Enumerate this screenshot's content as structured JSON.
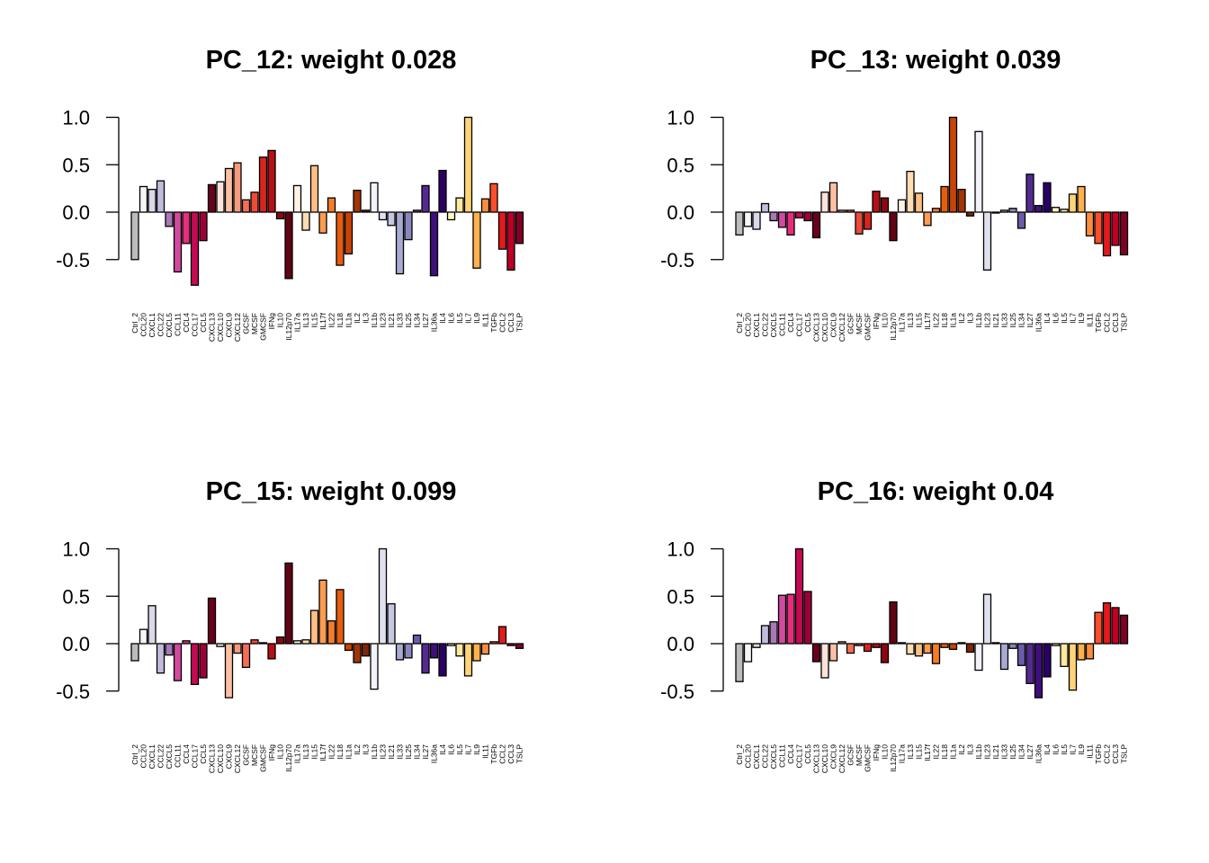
{
  "chart_data": [
    {
      "type": "bar",
      "title": "PC_12: weight 0.028",
      "ylim": [
        -0.65,
        1.05
      ],
      "yticks": [
        -0.5,
        0.0,
        0.5,
        1.0
      ],
      "ytick_labels": [
        "-0.5",
        "0.0",
        "0.5",
        "1.0"
      ],
      "categories": [
        "Ctrl_2",
        "CCL20",
        "CXCL1",
        "CCL22",
        "CXCL5",
        "CCL11",
        "CCL4",
        "CCL17",
        "CCL5",
        "CXCL13",
        "CXCL10",
        "CXCL9",
        "CXCL12",
        "GCSF",
        "MCSF",
        "GMCSF",
        "IFNg",
        "IL10",
        "IL12p70",
        "IL17a",
        "IL13",
        "IL15",
        "IL17f",
        "IL22",
        "IL18",
        "IL1a",
        "IL2",
        "IL3",
        "IL1b",
        "IL23",
        "IL21",
        "IL33",
        "IL25",
        "IL34",
        "IL27",
        "IL36a",
        "IL4",
        "IL6",
        "IL5",
        "IL7",
        "IL9",
        "IL11",
        "TGFb",
        "CCL2",
        "CCL3",
        "TSLP"
      ],
      "colors": [
        "#bcbcbc",
        "#f5f5f5",
        "#dcd8ea",
        "#c2bbdc",
        "#a879b7",
        "#d14aa0",
        "#e62e7b",
        "#c40a52",
        "#9c0038",
        "#6a0020",
        "#fde3d9",
        "#fbc0a4",
        "#f69a7c",
        "#f26e56",
        "#ed4a38",
        "#d7261f",
        "#b50f18",
        "#8b0711",
        "#600514",
        "#fff3e6",
        "#fedcb4",
        "#fdbf86",
        "#fd9c52",
        "#f67c28",
        "#e65d0f",
        "#c84306",
        "#a33405",
        "#7b2808",
        "#f2f2fb",
        "#e0e1ee",
        "#c6c8e2",
        "#a8aad2",
        "#8a87bf",
        "#6b5ba9",
        "#542a90",
        "#3f0f7c",
        "#2a0065",
        "#fff7c4",
        "#ffe99e",
        "#ffd478",
        "#feb24c",
        "#fd8d3c",
        "#fc4e2a",
        "#e31a1c",
        "#bd0026",
        "#800026"
      ],
      "values": [
        -0.5,
        0.27,
        0.24,
        0.33,
        -0.15,
        -0.63,
        -0.33,
        -0.77,
        -0.3,
        0.29,
        0.32,
        0.46,
        0.52,
        0.13,
        0.21,
        0.58,
        0.65,
        -0.07,
        -0.7,
        0.28,
        -0.19,
        0.49,
        -0.22,
        0.15,
        -0.56,
        -0.44,
        0.23,
        0.02,
        0.31,
        -0.08,
        -0.14,
        -0.65,
        -0.29,
        0.02,
        0.28,
        -0.67,
        0.44,
        -0.08,
        0.15,
        1.0,
        -0.59,
        0.14,
        0.3,
        -0.39,
        -0.61,
        -0.33
      ]
    },
    {
      "type": "bar",
      "title": "PC_13: weight 0.039",
      "ylim": [
        -0.65,
        1.05
      ],
      "yticks": [
        -0.5,
        0.0,
        0.5,
        1.0
      ],
      "ytick_labels": [
        "-0.5",
        "0.0",
        "0.5",
        "1.0"
      ],
      "categories": [
        "Ctrl_2",
        "CCL20",
        "CXCL1",
        "CCL22",
        "CXCL5",
        "CCL11",
        "CCL4",
        "CCL17",
        "CCL5",
        "CXCL13",
        "CXCL10",
        "CXCL9",
        "CXCL12",
        "GCSF",
        "MCSF",
        "GMCSF",
        "IFNg",
        "IL10",
        "IL12p70",
        "IL17a",
        "IL13",
        "IL15",
        "IL17f",
        "IL22",
        "IL18",
        "IL1a",
        "IL2",
        "IL3",
        "IL1b",
        "IL23",
        "IL21",
        "IL33",
        "IL25",
        "IL34",
        "IL27",
        "IL36a",
        "IL4",
        "IL6",
        "IL5",
        "IL7",
        "IL9",
        "IL11",
        "TGFb",
        "CCL2",
        "CCL3",
        "TSLP"
      ],
      "colors": [
        "#bcbcbc",
        "#f5f5f5",
        "#dcd8ea",
        "#c2bbdc",
        "#a879b7",
        "#d14aa0",
        "#e62e7b",
        "#c40a52",
        "#9c0038",
        "#6a0020",
        "#fde3d9",
        "#fbc0a4",
        "#f69a7c",
        "#f26e56",
        "#ed4a38",
        "#d7261f",
        "#b50f18",
        "#8b0711",
        "#600514",
        "#fff3e6",
        "#fedcb4",
        "#fdbf86",
        "#fd9c52",
        "#f67c28",
        "#e65d0f",
        "#c84306",
        "#a33405",
        "#7b2808",
        "#f2f2fb",
        "#e0e1ee",
        "#c6c8e2",
        "#a8aad2",
        "#8a87bf",
        "#6b5ba9",
        "#542a90",
        "#3f0f7c",
        "#2a0065",
        "#fff7c4",
        "#ffe99e",
        "#ffd478",
        "#feb24c",
        "#fd8d3c",
        "#fc4e2a",
        "#e31a1c",
        "#bd0026",
        "#800026"
      ],
      "values": [
        -0.24,
        -0.15,
        -0.18,
        0.09,
        -0.09,
        -0.16,
        -0.24,
        -0.06,
        -0.09,
        -0.27,
        0.21,
        0.31,
        0.02,
        0.02,
        -0.23,
        -0.18,
        0.22,
        0.15,
        -0.3,
        0.13,
        0.43,
        0.2,
        -0.14,
        0.04,
        0.27,
        1.0,
        0.24,
        -0.04,
        0.85,
        -0.61,
        0.0,
        0.02,
        0.04,
        -0.17,
        0.4,
        0.07,
        0.31,
        0.05,
        0.03,
        0.19,
        0.27,
        -0.25,
        -0.33,
        -0.46,
        -0.35,
        -0.45
      ]
    },
    {
      "type": "bar",
      "title": "PC_15: weight 0.099",
      "ylim": [
        -0.65,
        1.05
      ],
      "yticks": [
        -0.5,
        0.0,
        0.5,
        1.0
      ],
      "ytick_labels": [
        "-0.5",
        "0.0",
        "0.5",
        "1.0"
      ],
      "categories": [
        "Ctrl_2",
        "CCL20",
        "CXCL1",
        "CCL22",
        "CXCL5",
        "CCL11",
        "CCL4",
        "CCL17",
        "CCL5",
        "CXCL13",
        "CXCL10",
        "CXCL9",
        "CXCL12",
        "GCSF",
        "MCSF",
        "GMCSF",
        "IFNg",
        "IL10",
        "IL12p70",
        "IL17a",
        "IL13",
        "IL15",
        "IL17f",
        "IL22",
        "IL18",
        "IL1a",
        "IL2",
        "IL3",
        "IL1b",
        "IL23",
        "IL21",
        "IL33",
        "IL25",
        "IL34",
        "IL27",
        "IL36a",
        "IL4",
        "IL6",
        "IL5",
        "IL7",
        "IL9",
        "IL11",
        "TGFb",
        "CCL2",
        "CCL3",
        "TSLP"
      ],
      "colors": [
        "#bcbcbc",
        "#f5f5f5",
        "#dcd8ea",
        "#c2bbdc",
        "#a879b7",
        "#d14aa0",
        "#e62e7b",
        "#c40a52",
        "#9c0038",
        "#6a0020",
        "#fde3d9",
        "#fbc0a4",
        "#f69a7c",
        "#f26e56",
        "#ed4a38",
        "#d7261f",
        "#b50f18",
        "#8b0711",
        "#600514",
        "#fff3e6",
        "#fedcb4",
        "#fdbf86",
        "#fd9c52",
        "#f67c28",
        "#e65d0f",
        "#c84306",
        "#a33405",
        "#7b2808",
        "#f2f2fb",
        "#e0e1ee",
        "#c6c8e2",
        "#a8aad2",
        "#8a87bf",
        "#6b5ba9",
        "#542a90",
        "#3f0f7c",
        "#2a0065",
        "#fff7c4",
        "#ffe99e",
        "#ffd478",
        "#feb24c",
        "#fd8d3c",
        "#fc4e2a",
        "#e31a1c",
        "#bd0026",
        "#800026"
      ],
      "values": [
        -0.18,
        0.15,
        0.4,
        -0.31,
        -0.12,
        -0.39,
        0.03,
        -0.43,
        -0.36,
        0.48,
        -0.03,
        -0.57,
        -0.1,
        -0.25,
        0.04,
        0.01,
        -0.16,
        0.07,
        0.85,
        0.03,
        0.04,
        0.35,
        0.67,
        0.24,
        0.57,
        -0.07,
        -0.2,
        -0.13,
        -0.48,
        1.0,
        0.42,
        -0.17,
        -0.15,
        0.09,
        -0.31,
        -0.15,
        -0.34,
        -0.02,
        -0.13,
        -0.34,
        -0.18,
        -0.11,
        0.02,
        0.18,
        -0.02,
        -0.05
      ]
    },
    {
      "type": "bar",
      "title": "PC_16: weight 0.04",
      "ylim": [
        -0.65,
        1.05
      ],
      "yticks": [
        -0.5,
        0.0,
        0.5,
        1.0
      ],
      "ytick_labels": [
        "-0.5",
        "0.0",
        "0.5",
        "1.0"
      ],
      "categories": [
        "Ctrl_2",
        "CCL20",
        "CXCL1",
        "CCL22",
        "CXCL5",
        "CCL11",
        "CCL4",
        "CCL17",
        "CCL5",
        "CXCL13",
        "CXCL10",
        "CXCL9",
        "CXCL12",
        "GCSF",
        "MCSF",
        "GMCSF",
        "IFNg",
        "IL10",
        "IL12p70",
        "IL17a",
        "IL13",
        "IL15",
        "IL17f",
        "IL22",
        "IL18",
        "IL1a",
        "IL2",
        "IL3",
        "IL1b",
        "IL23",
        "IL21",
        "IL33",
        "IL25",
        "IL34",
        "IL27",
        "IL36a",
        "IL4",
        "IL6",
        "IL5",
        "IL7",
        "IL9",
        "IL11",
        "TGFb",
        "CCL2",
        "CCL3",
        "TSLP"
      ],
      "colors": [
        "#bcbcbc",
        "#f5f5f5",
        "#dcd8ea",
        "#c2bbdc",
        "#a879b7",
        "#d14aa0",
        "#e62e7b",
        "#c40a52",
        "#9c0038",
        "#6a0020",
        "#fde3d9",
        "#fbc0a4",
        "#f69a7c",
        "#f26e56",
        "#ed4a38",
        "#d7261f",
        "#b50f18",
        "#8b0711",
        "#600514",
        "#fff3e6",
        "#fedcb4",
        "#fdbf86",
        "#fd9c52",
        "#f67c28",
        "#e65d0f",
        "#c84306",
        "#a33405",
        "#7b2808",
        "#f2f2fb",
        "#e0e1ee",
        "#c6c8e2",
        "#a8aad2",
        "#8a87bf",
        "#6b5ba9",
        "#542a90",
        "#3f0f7c",
        "#2a0065",
        "#fff7c4",
        "#ffe99e",
        "#ffd478",
        "#feb24c",
        "#fd8d3c",
        "#fc4e2a",
        "#e31a1c",
        "#bd0026",
        "#800026"
      ],
      "values": [
        -0.4,
        -0.19,
        -0.04,
        0.19,
        0.23,
        0.51,
        0.52,
        1.0,
        0.55,
        -0.19,
        -0.36,
        -0.18,
        0.02,
        -0.1,
        -0.02,
        -0.08,
        -0.04,
        -0.2,
        0.44,
        0.01,
        -0.11,
        -0.13,
        -0.1,
        -0.21,
        -0.04,
        -0.06,
        0.01,
        -0.09,
        -0.28,
        0.52,
        0.01,
        -0.27,
        -0.05,
        -0.23,
        -0.42,
        -0.57,
        -0.35,
        -0.02,
        -0.24,
        -0.49,
        -0.17,
        -0.16,
        0.33,
        0.43,
        0.38,
        0.3
      ]
    }
  ]
}
